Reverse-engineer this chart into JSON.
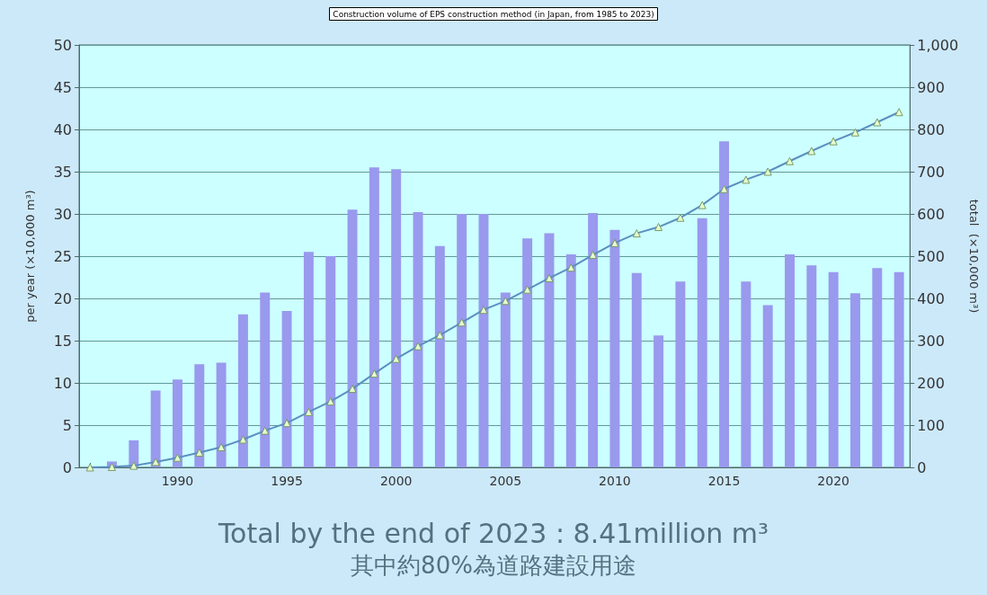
{
  "chart_data": {
    "type": "bar",
    "title": "Construction volume of EPS construction method (in Japan, from 1985 to 2023)",
    "ylabel": "per year (×10,000 m³)",
    "y2label": "total  (×10,000 m³)",
    "annotations": [
      "Total by the end of 2023 : 8.41million m³",
      "其中約80%為道路建設用途"
    ],
    "categories": [
      null,
      null,
      null,
      null,
      "1990",
      null,
      null,
      null,
      null,
      "1995",
      null,
      null,
      null,
      null,
      "2000",
      null,
      null,
      null,
      null,
      "2005",
      null,
      null,
      null,
      null,
      "2010",
      null,
      null,
      null,
      null,
      "2015",
      null,
      null,
      null,
      null,
      "2020",
      null,
      null,
      null
    ],
    "series": [
      {
        "color": "#9999ee",
        "values": [
          0,
          0.7,
          3.2,
          9.1,
          10.4,
          12.2,
          12.4,
          18.1,
          20.7,
          18.5,
          25.5,
          25.0,
          30.5,
          35.5,
          35.3,
          30.2,
          26.2,
          30.0,
          30.0,
          20.7,
          27.1,
          27.7,
          25.2,
          30.1,
          28.1,
          23.0,
          15.6,
          22.0,
          29.5,
          38.6,
          22.0,
          19.2,
          25.2,
          23.9,
          23.1,
          20.6,
          23.6,
          23.1
        ]
      },
      {
        "type": "line",
        "axis": "y2",
        "color": "#5a8fc0",
        "marker": "triangle",
        "values": [
          0,
          1,
          4,
          13,
          23,
          35,
          48,
          66,
          87,
          105,
          131,
          156,
          186,
          222,
          257,
          287,
          313,
          343,
          373,
          394,
          421,
          448,
          473,
          503,
          531,
          554,
          569,
          591,
          621,
          659,
          681,
          700,
          725,
          749,
          772,
          793,
          817,
          841
        ]
      }
    ],
    "ylim": [
      0,
      50
    ],
    "yticks": [
      0,
      5,
      10,
      15,
      20,
      25,
      30,
      35,
      40,
      45,
      50
    ],
    "y2lim": [
      0,
      1000
    ],
    "y2ticks": [
      0,
      100,
      200,
      300,
      400,
      500,
      600,
      700,
      800,
      900,
      {
        "value": 1000,
        "label": "1,000"
      }
    ],
    "grid": "y"
  }
}
